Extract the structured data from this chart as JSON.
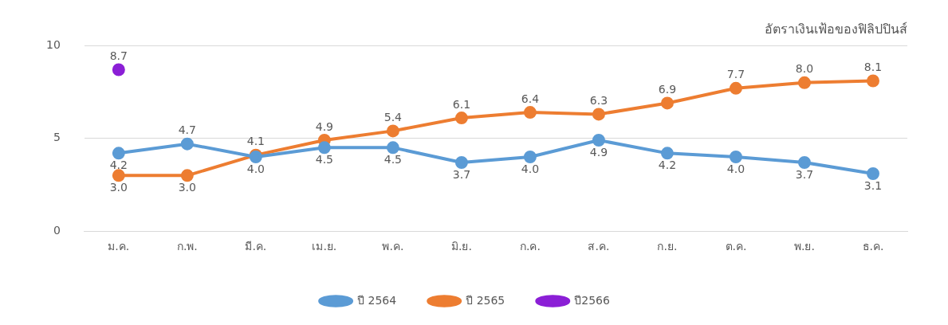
{
  "chart_data": {
    "type": "line",
    "title": "อัตราเงินเฟ้อของฟิลิปปินส์",
    "categories": [
      "ม.ค.",
      "ก.พ.",
      "มี.ค.",
      "เม.ย.",
      "พ.ค.",
      "มิ.ย.",
      "ก.ค.",
      "ส.ค.",
      "ก.ย.",
      "ต.ค.",
      "พ.ย.",
      "ธ.ค."
    ],
    "series": [
      {
        "name": "ปี 2564",
        "color": "#5b9bd5",
        "values": [
          4.2,
          4.7,
          4.0,
          4.5,
          4.5,
          3.7,
          4.0,
          4.9,
          4.2,
          4.0,
          3.7,
          3.1
        ],
        "value_labels": [
          "4.2",
          "4.7",
          "4.0",
          "4.5",
          "4.5",
          "3.7",
          "4.0",
          "4.9",
          "4.2",
          "4.0",
          "3.7",
          "3.1"
        ]
      },
      {
        "name": "ปี 2565",
        "color": "#ed7d31",
        "values": [
          3.0,
          3.0,
          4.1,
          4.9,
          5.4,
          6.1,
          6.4,
          6.3,
          6.9,
          7.7,
          8.0,
          8.1
        ],
        "value_labels": [
          "3.0",
          "3.0",
          "4.1",
          "4.9",
          "5.4",
          "6.1",
          "6.4",
          "6.3",
          "6.9",
          "7.7",
          "8.0",
          "8.1"
        ]
      },
      {
        "name": "ปี2566",
        "color": "#8b1fd6",
        "values": [
          8.7,
          null,
          null,
          null,
          null,
          null,
          null,
          null,
          null,
          null,
          null,
          null
        ],
        "value_labels": [
          "8.7",
          null,
          null,
          null,
          null,
          null,
          null,
          null,
          null,
          null,
          null,
          null
        ]
      }
    ],
    "ylim": [
      0,
      10
    ],
    "yticks": [
      0,
      5,
      10
    ],
    "grid": "y",
    "legend": "bottom",
    "marker": "circle"
  }
}
